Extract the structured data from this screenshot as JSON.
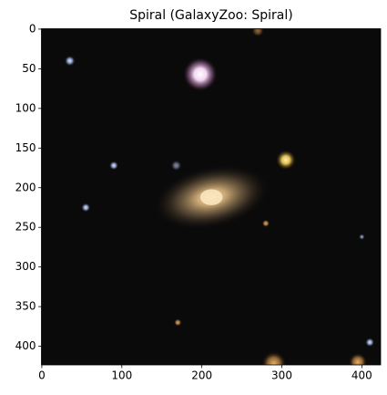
{
  "chart_data": {
    "type": "image",
    "title": "Spiral (GalaxyZoo: Spiral)",
    "xlim": [
      -0.5,
      423.5
    ],
    "ylim": [
      423.5,
      -0.5
    ],
    "xticks": [
      0,
      100,
      200,
      300,
      400
    ],
    "yticks": [
      0,
      50,
      100,
      150,
      200,
      250,
      300,
      350,
      400
    ]
  }
}
